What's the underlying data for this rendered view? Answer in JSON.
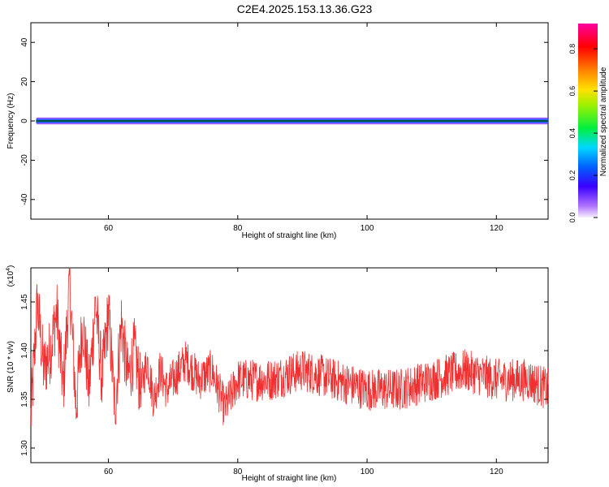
{
  "title": "C2E4.2025.153.13.36.G23",
  "chart_data": [
    {
      "type": "heatmap",
      "xlabel": "Height of straight line (km)",
      "ylabel": "Frequency (Hz)",
      "xlim": [
        48,
        128
      ],
      "ylim": [
        -50,
        50
      ],
      "xticks": [
        "60",
        "80",
        "100",
        "120"
      ],
      "yticks": [
        "-40",
        "-20",
        "0",
        "20",
        "40"
      ],
      "band_center_hz": 0,
      "band_halfwidth_hz": 2,
      "colorbar": {
        "label": "Normalized spectral amplitude",
        "ticks": [
          "0.0",
          "0.2",
          "0.4",
          "0.6",
          "0.8"
        ],
        "range": [
          0,
          0.92
        ]
      }
    },
    {
      "type": "line",
      "xlabel": "Height of straight line (km)",
      "ylabel": "SNR (10 * v/v)",
      "scale_label": "(x10",
      "scale_exp": "4",
      "scale_close": ")",
      "xlim": [
        48,
        128
      ],
      "ylim": [
        1.285,
        1.485
      ],
      "xticks": [
        "60",
        "80",
        "100",
        "120"
      ],
      "yticks": [
        "1.30",
        "1.35",
        "1.40",
        "1.45"
      ],
      "line_color": "#f03030",
      "series": [
        {
          "x": [
            48,
            49,
            50,
            51,
            52,
            53,
            54,
            55,
            56,
            57,
            58,
            59,
            60,
            61,
            62,
            63,
            64,
            65,
            66,
            67,
            68,
            69,
            70,
            72,
            74,
            76,
            78,
            80,
            85,
            90,
            95,
            100,
            105,
            110,
            115,
            120,
            125,
            128
          ],
          "y": [
            1.33,
            1.45,
            1.38,
            1.4,
            1.44,
            1.36,
            1.47,
            1.34,
            1.43,
            1.36,
            1.45,
            1.37,
            1.44,
            1.34,
            1.43,
            1.37,
            1.4,
            1.36,
            1.39,
            1.35,
            1.38,
            1.36,
            1.37,
            1.39,
            1.37,
            1.38,
            1.34,
            1.37,
            1.37,
            1.38,
            1.37,
            1.36,
            1.36,
            1.37,
            1.38,
            1.37,
            1.37,
            1.36
          ]
        }
      ]
    }
  ]
}
